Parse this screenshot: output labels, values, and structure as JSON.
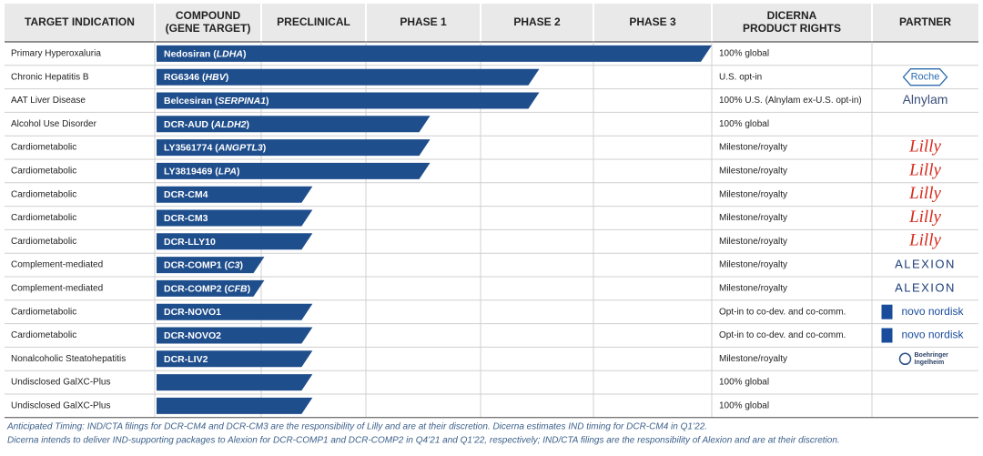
{
  "header": {
    "columns": [
      [
        "TARGET INDICATION"
      ],
      [
        "COMPOUND",
        "(GENE TARGET)"
      ],
      [
        "PRECLINICAL"
      ],
      [
        "PHASE 1"
      ],
      [
        "PHASE 2"
      ],
      [
        "PHASE 3"
      ],
      [
        "DICERNA",
        "PRODUCT RIGHTS"
      ],
      [
        "PARTNER"
      ]
    ]
  },
  "progress_lim": [
    0,
    4
  ],
  "rows": [
    {
      "indication": "Primary Hyperoxaluria",
      "compound": [
        "Nedosiran (",
        "LDHA",
        ")"
      ],
      "progress": 4,
      "rights": "100% global"
    },
    {
      "indication": "Chronic Hepatitis B",
      "compound": [
        "RG6346 (",
        "HBV",
        ")"
      ],
      "progress": 2.52,
      "rights": "U.S. opt-in",
      "partner": "Roche"
    },
    {
      "indication": "AAT Liver Disease",
      "compound": [
        "Belcesiran (",
        "SERPINA1",
        ")"
      ],
      "progress": 2.52,
      "rights": "100% U.S. (Alnylam ex-U.S. opt-in)",
      "partner": "Alnylam"
    },
    {
      "indication": "Alcohol Use Disorder",
      "compound": [
        "DCR-AUD (",
        "ALDH2",
        ")"
      ],
      "progress": 1.56,
      "rights": "100% global"
    },
    {
      "indication": "Cardiometabolic",
      "compound": [
        "LY3561774 (",
        "ANGPTL3",
        ")"
      ],
      "progress": 1.56,
      "rights": "Milestone/royalty",
      "partner": "Lilly"
    },
    {
      "indication": "Cardiometabolic",
      "compound": [
        "LY3819469 (",
        "LPA",
        ")"
      ],
      "progress": 1.56,
      "rights": "Milestone/royalty",
      "partner": "Lilly"
    },
    {
      "indication": "Cardiometabolic",
      "compound": [
        "DCR-CM4"
      ],
      "progress": 0.49,
      "rights": "Milestone/royalty",
      "partner": "Lilly"
    },
    {
      "indication": "Cardiometabolic",
      "compound": [
        "DCR-CM3"
      ],
      "progress": 0.49,
      "rights": "Milestone/royalty",
      "partner": "Lilly"
    },
    {
      "indication": "Cardiometabolic",
      "compound": [
        "DCR-LLY10"
      ],
      "progress": 0.49,
      "rights": "Milestone/royalty",
      "partner": "Lilly"
    },
    {
      "indication": "Complement-mediated",
      "compound": [
        "DCR-COMP1 (",
        "C3",
        ")"
      ],
      "progress": 0.03,
      "rights": "Milestone/royalty",
      "partner": "ALEXION"
    },
    {
      "indication": "Complement-mediated",
      "compound": [
        "DCR-COMP2 (",
        "CFB",
        ")"
      ],
      "progress": 0.03,
      "rights": "Milestone/royalty",
      "partner": "ALEXION"
    },
    {
      "indication": "Cardiometabolic",
      "compound": [
        "DCR-NOVO1"
      ],
      "progress": 0.49,
      "rights": "Opt-in to co-dev. and co-comm.",
      "partner": "novo nordisk"
    },
    {
      "indication": "Cardiometabolic",
      "compound": [
        "DCR-NOVO2"
      ],
      "progress": 0.49,
      "rights": "Opt-in to co-dev. and co-comm.",
      "partner": "novo nordisk"
    },
    {
      "indication": "Nonalcoholic Steatohepatitis",
      "compound": [
        "DCR-LIV2"
      ],
      "progress": 0.49,
      "rights": "Milestone/royalty",
      "partner": [
        "Boehringer",
        "Ingelheim"
      ]
    },
    {
      "indication": "Undisclosed GalXC-Plus",
      "progress": 0.49,
      "rights": "100% global"
    },
    {
      "indication": "Undisclosed GalXC-Plus",
      "progress": 0.49,
      "rights": "100% global"
    }
  ],
  "footnotes": [
    "Anticipated Timing: IND/CTA filings for DCR-CM4 and DCR-CM3 are the responsibility of Lilly and are at their discretion.  Dicerna estimates IND timing for DCR-CM4 in Q1’22.",
    "Dicerna intends to deliver IND-supporting packages to Alexion for DCR-COMP1 and DCR-COMP2 in Q4’21 and Q1’22, respectively;  IND/CTA filings are the responsibility of Alexion and are at their discretion."
  ]
}
